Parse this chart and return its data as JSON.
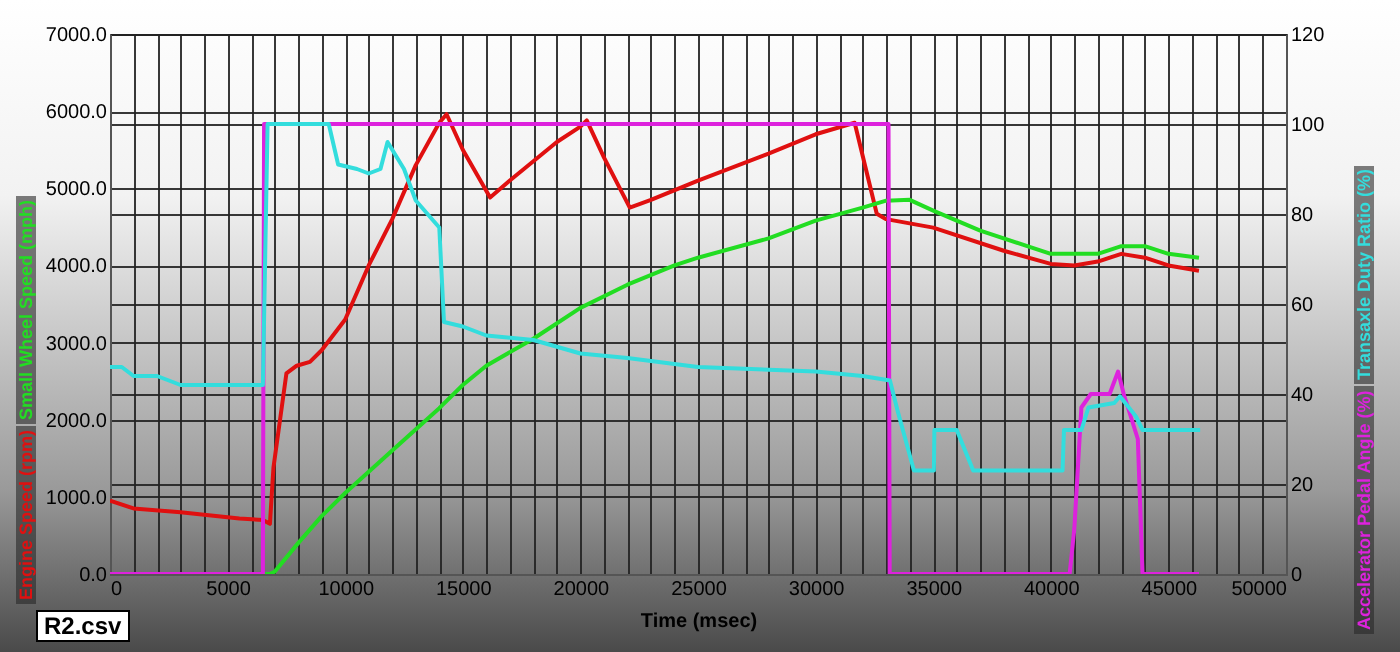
{
  "chart_data": {
    "type": "line",
    "xlabel": "Time (msec)",
    "annotations": [
      "R2.csv"
    ],
    "xlim": [
      0,
      50000
    ],
    "xticks": [
      0,
      5000,
      10000,
      15000,
      20000,
      25000,
      30000,
      35000,
      40000,
      45000,
      50000
    ],
    "ylim": [
      0,
      7000
    ],
    "yticks": [
      {
        "value": 0,
        "label": "0.0"
      },
      {
        "value": 1000,
        "label": "1000.0"
      },
      {
        "value": 2000,
        "label": "2000.0"
      },
      {
        "value": 3000,
        "label": "3000.0"
      },
      {
        "value": 4000,
        "label": "4000.0"
      },
      {
        "value": 5000,
        "label": "5000.0"
      },
      {
        "value": 6000,
        "label": "6000.0"
      },
      {
        "value": 7000,
        "label": "7000.0"
      }
    ],
    "y2lim": [
      0,
      120
    ],
    "y2ticks": [
      0,
      20,
      40,
      60,
      80,
      100,
      120
    ],
    "grid": true,
    "legend": false,
    "line_style": "solid",
    "series": [
      {
        "name": "Engine Speed (rpm)",
        "color": "#e01010",
        "x": [
          0,
          1000,
          3000,
          5500,
          6500,
          6800,
          6950,
          7500,
          7940,
          8500,
          9000,
          10000,
          11000,
          12000,
          13000,
          14000,
          14310,
          15000,
          16160,
          17000,
          18000,
          19000,
          20000,
          20270,
          21000,
          22100,
          23000,
          25000,
          28000,
          30000,
          31660,
          32600,
          33000,
          35000,
          38000,
          40000,
          41000,
          42000,
          43000,
          44000,
          45000,
          46300
        ],
        "values": [
          950,
          850,
          800,
          720,
          700,
          650,
          1380,
          2600,
          2700,
          2750,
          2900,
          3300,
          4000,
          4600,
          5300,
          5850,
          5960,
          5500,
          4880,
          5100,
          5350,
          5600,
          5800,
          5880,
          5400,
          4750,
          4850,
          5100,
          5450,
          5700,
          5850,
          4670,
          4600,
          4490,
          4190,
          4020,
          4000,
          4050,
          4150,
          4100,
          4000,
          3930
        ]
      },
      {
        "name": "Small Wheel Speed (mph)",
        "color": "#22dd22",
        "x": [
          0,
          6800,
          7000,
          8000,
          9000,
          10000,
          12000,
          14000,
          15000,
          16000,
          18000,
          20000,
          22000,
          24000,
          25000,
          28000,
          30000,
          32000,
          33000,
          34000,
          35000,
          37000,
          39000,
          40000,
          42000,
          43000,
          44000,
          45000,
          46300
        ],
        "values": [
          0,
          0,
          30,
          400,
          750,
          1050,
          1600,
          2150,
          2450,
          2700,
          3050,
          3450,
          3750,
          4000,
          4100,
          4350,
          4580,
          4750,
          4840,
          4850,
          4710,
          4450,
          4250,
          4150,
          4150,
          4250,
          4250,
          4150,
          4100
        ]
      },
      {
        "name": "Accelerator Pedal Angle (%)",
        "color": "#dd22dd",
        "axis": "y2",
        "x": [
          0,
          6500,
          6550,
          33100,
          33150,
          40800,
          41000,
          41300,
          41700,
          42500,
          42860,
          43100,
          43700,
          43900,
          46300
        ],
        "values": [
          0,
          0,
          100,
          100,
          0,
          0,
          10,
          37,
          40,
          40,
          45,
          40,
          30,
          0,
          0
        ]
      },
      {
        "name": "Transaxle Duty Ratio (%)",
        "color": "#33dddd",
        "axis": "y2",
        "x": [
          0,
          500,
          1000,
          2000,
          3000,
          6500,
          6700,
          9300,
          9700,
          10500,
          11000,
          11500,
          11800,
          12500,
          13000,
          14000,
          14200,
          15000,
          16000,
          18000,
          20000,
          22000,
          25000,
          30000,
          32000,
          33160,
          33500,
          34180,
          35030,
          35050,
          36000,
          36700,
          40500,
          40560,
          41300,
          41600,
          42700,
          42940,
          43620,
          43900,
          46350
        ],
        "values": [
          46,
          46,
          44,
          44,
          42,
          42,
          100,
          100,
          91,
          90,
          89,
          90,
          96,
          90,
          83,
          77,
          56,
          55,
          53,
          52,
          49,
          48,
          46,
          45,
          44,
          43,
          36,
          23,
          23,
          32,
          32,
          23,
          23,
          32,
          32,
          37,
          38,
          39.5,
          35,
          32,
          32
        ]
      }
    ]
  }
}
